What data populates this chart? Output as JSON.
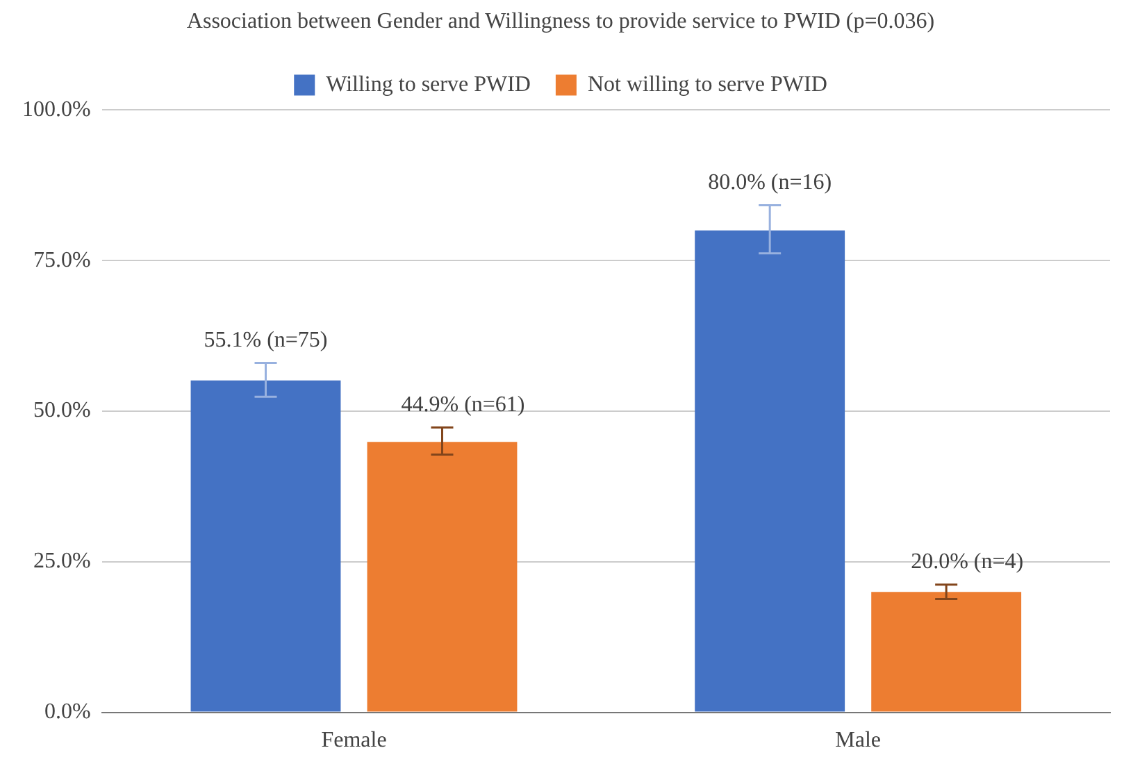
{
  "chart_data": {
    "type": "bar",
    "title": "Association between Gender and Willingness to provide service to PWID (p=0.036)",
    "categories": [
      "Female",
      "Male"
    ],
    "series": [
      {
        "name": "Willing to serve PWID",
        "color": "#4472c4",
        "values": [
          55.1,
          80.0
        ],
        "errors": [
          [
            52.4,
            58.0
          ],
          [
            76.2,
            84.2
          ]
        ],
        "value_labels": [
          "55.1% (n=75)",
          "80.0% (n=16)"
        ]
      },
      {
        "name": "Not willing to serve PWID",
        "color": "#ed7d31",
        "values": [
          44.9,
          20.0
        ],
        "errors": [
          [
            42.8,
            47.3
          ],
          [
            18.8,
            21.2
          ]
        ],
        "value_labels": [
          "44.9% (n=61)",
          "20.0% (n=4)"
        ]
      }
    ],
    "ylim": [
      0,
      100
    ],
    "yticks": [
      {
        "value": 0,
        "label": "0.0%"
      },
      {
        "value": 25,
        "label": "25.0%"
      },
      {
        "value": 50,
        "label": "50.0%"
      },
      {
        "value": 75,
        "label": "75.0%"
      },
      {
        "value": 100,
        "label": "100.0%"
      }
    ],
    "grid": "y",
    "legend": "top"
  }
}
